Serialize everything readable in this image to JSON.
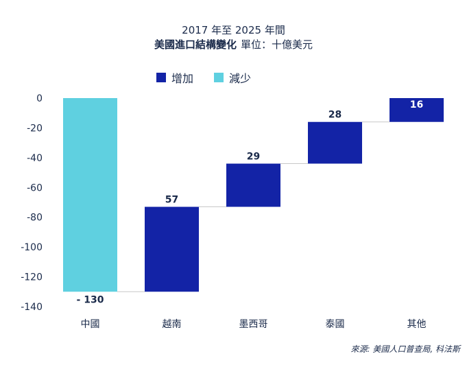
{
  "chart_data": {
    "type": "waterfall",
    "title": "2017 年至 2025 年間",
    "subtitle": "美國進口結構變化",
    "unit_label": "單位：十億美元",
    "categories": [
      "中國",
      "越南",
      "墨西哥",
      "泰國",
      "其他"
    ],
    "values": [
      -130,
      57,
      29,
      28,
      16
    ],
    "data_labels": [
      "- 130",
      "57",
      "29",
      "28",
      "16"
    ],
    "legend": [
      {
        "name": "增加",
        "color": "#1323a6"
      },
      {
        "name": "減少",
        "color": "#5fd0e0"
      }
    ],
    "ylim": [
      -140,
      0
    ],
    "yticks": [
      0,
      -20,
      -40,
      -60,
      -80,
      -100,
      -120,
      -140
    ],
    "grid": false,
    "legend_position": "top-center"
  },
  "source": "來源: 美國人口普查局, 科法斯"
}
